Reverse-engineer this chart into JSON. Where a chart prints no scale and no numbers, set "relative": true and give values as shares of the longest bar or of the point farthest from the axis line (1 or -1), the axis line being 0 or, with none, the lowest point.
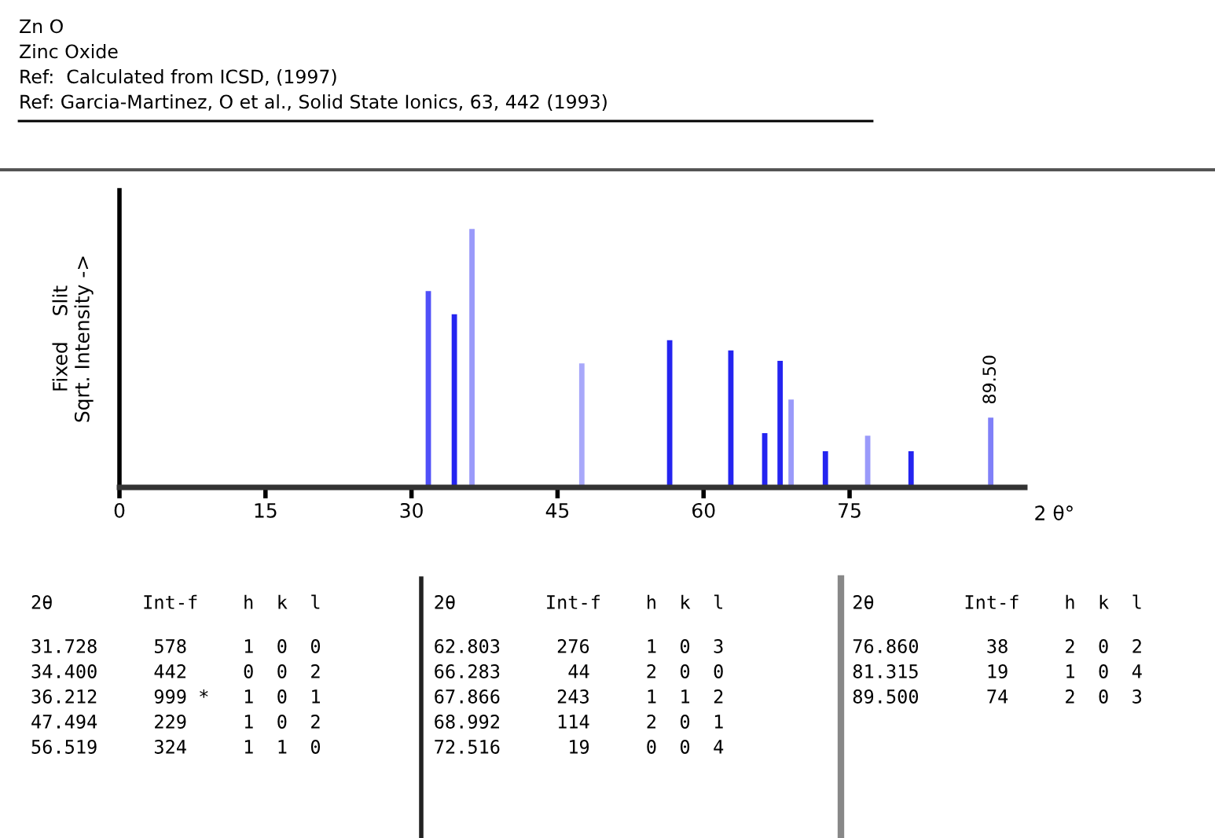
{
  "chart_data": [
    {
      "type": "bar",
      "title": "Zn O",
      "subtitle": "Zinc Oxide",
      "xlabel": "2 θ°",
      "ylabel": "Fixed    Slit\nSqrt. Intensity ->",
      "relative": true,
      "x": [
        31.728,
        34.4,
        36.212,
        47.494,
        56.519,
        62.803,
        66.283,
        67.866,
        68.992,
        72.516,
        76.86,
        81.315,
        89.5
      ],
      "values": [
        0.76,
        0.67,
        1,
        0.48,
        0.57,
        0.53,
        0.21,
        0.49,
        0.34,
        0.14,
        0.2,
        0.14,
        0.27
      ],
      "colors": [
        "#5050f8",
        "#2424f0",
        "#9a9afa",
        "#a8a8fa",
        "#2424f0",
        "#2424f0",
        "#2424f0",
        "#2424f0",
        "#9a9afa",
        "#2424f0",
        "#9a9afa",
        "#2424f0",
        "#8080f8"
      ],
      "xlim": [
        0,
        93
      ],
      "xticks": [
        0,
        15,
        30,
        45,
        60,
        75
      ],
      "grid": false,
      "legend": false,
      "annotations": [
        "Ref:  Calculated from ICSD, (1997)",
        "Ref: Garcia-Martinez, O et al., Solid State Ionics, 63, 442 (1993)",
        {
          "text": "89.50",
          "x": 89.5,
          "y": 0.27
        }
      ]
    },
    {
      "type": "other",
      "annotations": [
        "2θ        Int-f    h  k  l",
        "31.728     578     1  0  0",
        "34.400     442     0  0  2",
        "36.212     999 *   1  0  1",
        "47.494     229     1  0  2",
        "56.519     324     1  1  0"
      ]
    },
    {
      "type": "other",
      "annotations": [
        "2θ        Int-f    h  k  l",
        "62.803     276     1  0  3",
        "66.283      44     2  0  0",
        "67.866     243     1  1  2",
        "68.992     114     2  0  1",
        "72.516      19     0  0  4"
      ]
    },
    {
      "type": "other",
      "annotations": [
        "2θ        Int-f    h  k  l",
        "76.860      38     2  0  2",
        "81.315      19     1  0  4",
        "89.500      74     2  0  3"
      ]
    }
  ]
}
